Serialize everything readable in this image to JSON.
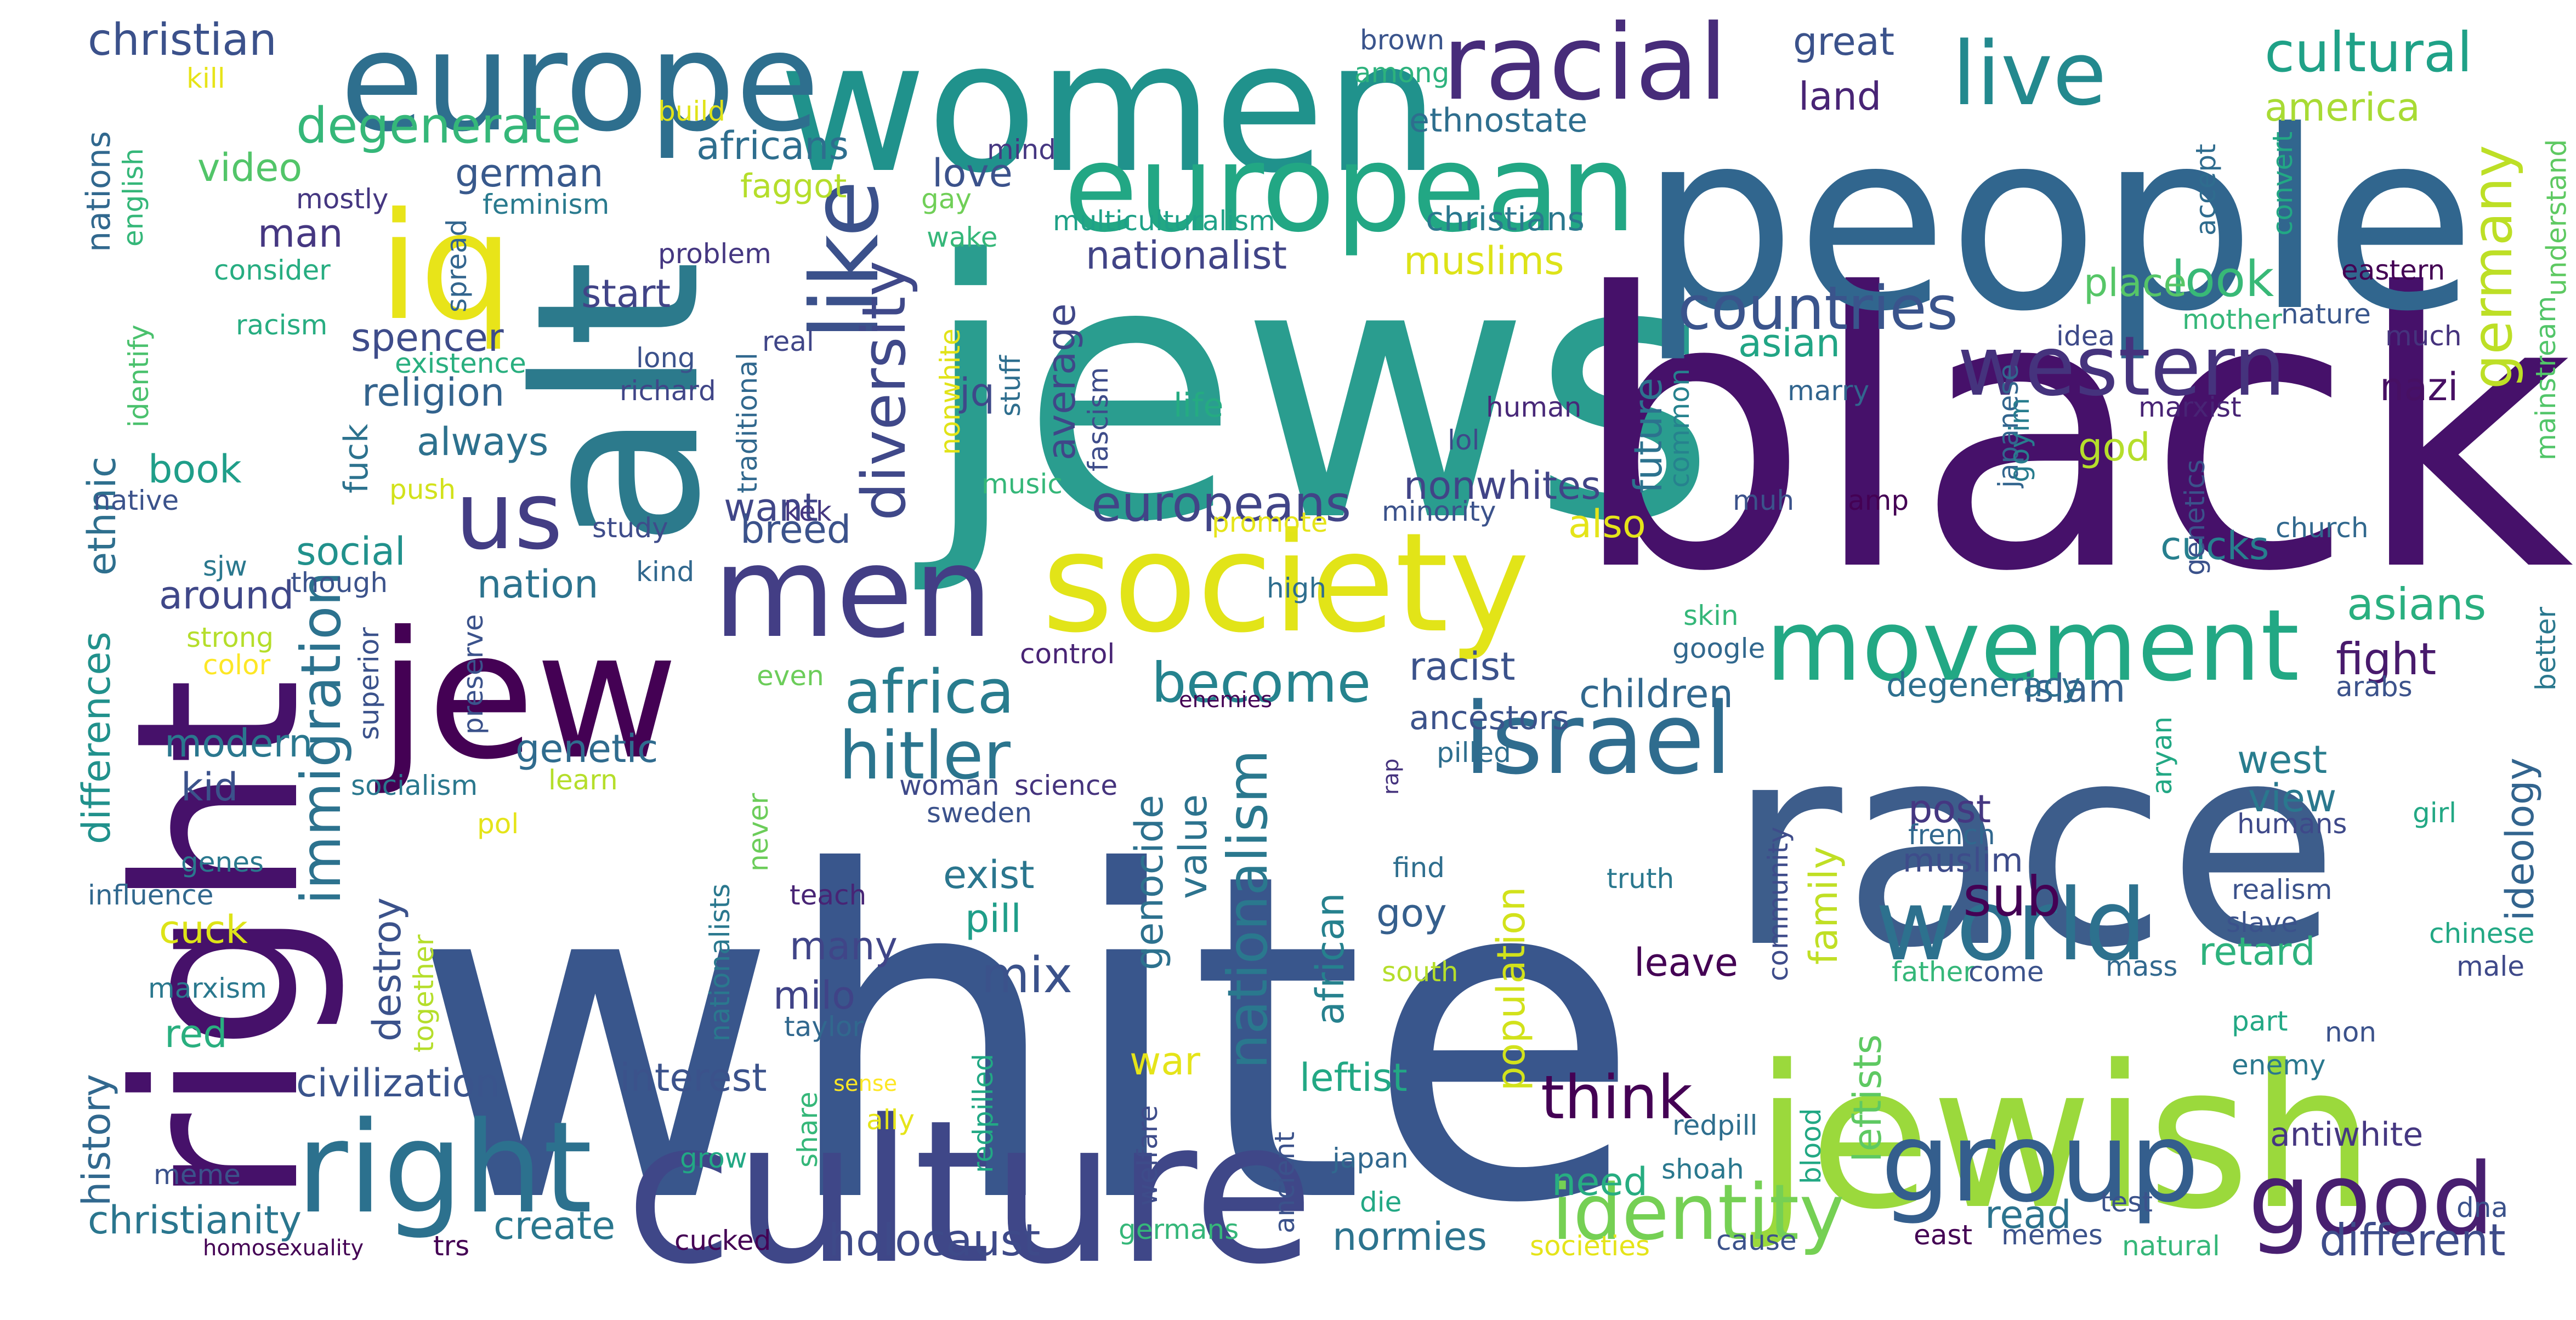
{
  "word_cloud": {
    "words": [
      {
        "text": "white",
        "color": "#39568c"
      },
      {
        "text": "jews",
        "color": "#2a9d8f"
      },
      {
        "text": "black",
        "color": "#46116a"
      },
      {
        "text": "race",
        "color": "#3d5d8b"
      },
      {
        "text": "people",
        "color": "#31668e"
      },
      {
        "text": "alt",
        "color": "#2c7a8c"
      },
      {
        "text": "right",
        "color": "#46116a"
      },
      {
        "text": "jewish",
        "color": "#9bd93c"
      },
      {
        "text": "culture",
        "color": "#3f4788"
      },
      {
        "text": "women",
        "color": "#20928c"
      },
      {
        "text": "europe",
        "color": "#2e6f8e"
      },
      {
        "text": "society",
        "color": "#e2e418"
      },
      {
        "text": "jew",
        "color": "#440154"
      },
      {
        "text": "iq",
        "color": "#e8e419"
      },
      {
        "text": "european",
        "color": "#22a784"
      },
      {
        "text": "men",
        "color": "#433e85"
      },
      {
        "text": "right",
        "color": "#2c718e"
      },
      {
        "text": "racial",
        "color": "#472c7a"
      },
      {
        "text": "group",
        "color": "#345e8d"
      },
      {
        "text": "movement",
        "color": "#22a884"
      },
      {
        "text": "israel",
        "color": "#2f6c8e"
      },
      {
        "text": "world",
        "color": "#2d718e"
      },
      {
        "text": "like",
        "color": "#3b518b"
      },
      {
        "text": "us",
        "color": "#433d84"
      },
      {
        "text": "good",
        "color": "#481f70"
      },
      {
        "text": "live",
        "color": "#23898e"
      },
      {
        "text": "western",
        "color": "#45337d"
      },
      {
        "text": "identity",
        "color": "#75d054"
      },
      {
        "text": "countries",
        "color": "#3a548c"
      },
      {
        "text": "diversity",
        "color": "#3f4889"
      },
      {
        "text": "hitler",
        "color": "#2b758e"
      },
      {
        "text": "africa",
        "color": "#287c8e"
      },
      {
        "text": "immigration",
        "color": "#2c728e"
      },
      {
        "text": "cultural",
        "color": "#1fa187"
      },
      {
        "text": "degenerate",
        "color": "#35b779"
      },
      {
        "text": "nationalism",
        "color": "#2a788e"
      },
      {
        "text": "europeans",
        "color": "#414487"
      },
      {
        "text": "become",
        "color": "#25838e"
      },
      {
        "text": "think",
        "color": "#440154"
      },
      {
        "text": "holocaust",
        "color": "#3e4a89"
      },
      {
        "text": "germany",
        "color": "#bddf26"
      },
      {
        "text": "christian",
        "color": "#3b518b"
      },
      {
        "text": "christianity",
        "color": "#2a768e"
      },
      {
        "text": "civilization",
        "color": "#3a548c"
      },
      {
        "text": "nationalist",
        "color": "#414487"
      },
      {
        "text": "nonwhites",
        "color": "#414487"
      },
      {
        "text": "look",
        "color": "#38b977"
      },
      {
        "text": "sub",
        "color": "#440154"
      },
      {
        "text": "mix",
        "color": "#3b528b"
      },
      {
        "text": "different",
        "color": "#3e4c8a"
      },
      {
        "text": "america",
        "color": "#a8db34"
      },
      {
        "text": "africans",
        "color": "#2e6e8e"
      },
      {
        "text": "genetic",
        "color": "#2f6b8e"
      },
      {
        "text": "fight",
        "color": "#481a6c"
      },
      {
        "text": "nazi",
        "color": "#471063"
      },
      {
        "text": "islam",
        "color": "#35608d"
      },
      {
        "text": "asians",
        "color": "#29af7f"
      },
      {
        "text": "muslims",
        "color": "#dde318"
      },
      {
        "text": "modern",
        "color": "#2a778e"
      },
      {
        "text": "around",
        "color": "#3f4788"
      },
      {
        "text": "religion",
        "color": "#33638d"
      },
      {
        "text": "always",
        "color": "#2d718e"
      },
      {
        "text": "video",
        "color": "#52c569"
      },
      {
        "text": "german",
        "color": "#38598c"
      },
      {
        "text": "leftist",
        "color": "#22a884"
      },
      {
        "text": "need",
        "color": "#27ad81"
      },
      {
        "text": "racist",
        "color": "#3b528b"
      },
      {
        "text": "genocide",
        "color": "#2d718e"
      },
      {
        "text": "population",
        "color": "#d2e21b"
      },
      {
        "text": "leftists",
        "color": "#5ec962"
      },
      {
        "text": "ideology",
        "color": "#32648e"
      },
      {
        "text": "retard",
        "color": "#2db27d"
      },
      {
        "text": "cucks",
        "color": "#277f8e"
      },
      {
        "text": "west",
        "color": "#287d8e"
      },
      {
        "text": "view",
        "color": "#2a788e"
      },
      {
        "text": "post",
        "color": "#453781"
      },
      {
        "text": "children",
        "color": "#31688e"
      },
      {
        "text": "nation",
        "color": "#2c738e"
      },
      {
        "text": "social",
        "color": "#21918c"
      },
      {
        "text": "book",
        "color": "#1f9e89"
      },
      {
        "text": "ethnic",
        "color": "#2e6f8e"
      },
      {
        "text": "differences",
        "color": "#21918c"
      },
      {
        "text": "kid",
        "color": "#3b528b"
      },
      {
        "text": "spencer",
        "color": "#3e4c8a"
      },
      {
        "text": "start",
        "color": "#414487"
      },
      {
        "text": "want",
        "color": "#404688"
      },
      {
        "text": "breed",
        "color": "#3b528b"
      },
      {
        "text": "jq",
        "color": "#3e4989"
      },
      {
        "text": "average",
        "color": "#3f4788"
      },
      {
        "text": "future",
        "color": "#2c728e"
      },
      {
        "text": "god",
        "color": "#b5de2b"
      },
      {
        "text": "also",
        "color": "#e5e419"
      },
      {
        "text": "asian",
        "color": "#21a585"
      },
      {
        "text": "place",
        "color": "#56c667"
      },
      {
        "text": "man",
        "color": "#453781"
      },
      {
        "text": "love",
        "color": "#3b528b"
      },
      {
        "text": "great",
        "color": "#3b528b"
      },
      {
        "text": "land",
        "color": "#482475"
      },
      {
        "text": "value",
        "color": "#2c738e"
      },
      {
        "text": "exist",
        "color": "#2a768e"
      },
      {
        "text": "pill",
        "color": "#1f9e89"
      },
      {
        "text": "many",
        "color": "#404588"
      },
      {
        "text": "milo",
        "color": "#404387"
      },
      {
        "text": "interest",
        "color": "#3b528b"
      },
      {
        "text": "create",
        "color": "#2a778e"
      },
      {
        "text": "history",
        "color": "#31688e"
      },
      {
        "text": "destroy",
        "color": "#3b528b"
      },
      {
        "text": "cuck",
        "color": "#dde318"
      },
      {
        "text": "red",
        "color": "#29af7f"
      },
      {
        "text": "goy",
        "color": "#355f8d"
      },
      {
        "text": "african",
        "color": "#26818e"
      },
      {
        "text": "war",
        "color": "#e5e419"
      },
      {
        "text": "read",
        "color": "#2c738e"
      },
      {
        "text": "normies",
        "color": "#2c738e"
      },
      {
        "text": "family",
        "color": "#c0df25"
      },
      {
        "text": "leave",
        "color": "#440154"
      },
      {
        "text": "muslim",
        "color": "#3e4c8a"
      },
      {
        "text": "degeneracy",
        "color": "#2d6f8e"
      },
      {
        "text": "ancestors",
        "color": "#3b528b"
      },
      {
        "text": "antiwhite",
        "color": "#453781"
      },
      {
        "text": "fuck",
        "color": "#2c728e"
      },
      {
        "text": "ethnostate",
        "color": "#2e6e8e"
      },
      {
        "text": "christians",
        "color": "#2a788e"
      },
      {
        "text": "nations",
        "color": "#31688e"
      },
      {
        "text": "life",
        "color": "#25ab82"
      },
      {
        "text": "faggot",
        "color": "#b5de2b"
      },
      {
        "text": "build",
        "color": "#e0e318"
      },
      {
        "text": "kill",
        "color": "#e7e419"
      },
      {
        "text": "mostly",
        "color": "#453781"
      },
      {
        "text": "spread",
        "color": "#32658e"
      },
      {
        "text": "feminism",
        "color": "#297a8e"
      },
      {
        "text": "problem",
        "color": "#453781"
      },
      {
        "text": "consider",
        "color": "#27ad81"
      },
      {
        "text": "english",
        "color": "#35b779"
      },
      {
        "text": "multiculturalism",
        "color": "#1fa187"
      },
      {
        "text": "wake",
        "color": "#35b779"
      },
      {
        "text": "gay",
        "color": "#70cf57"
      },
      {
        "text": "nonwhite",
        "color": "#e1e318"
      },
      {
        "text": "among",
        "color": "#2db27d"
      },
      {
        "text": "brown",
        "color": "#3a548c"
      },
      {
        "text": "mind",
        "color": "#453781"
      },
      {
        "text": "accept",
        "color": "#2f6c8e"
      },
      {
        "text": "convert",
        "color": "#22a884"
      },
      {
        "text": "understand",
        "color": "#5ec962"
      },
      {
        "text": "eastern",
        "color": "#440154"
      },
      {
        "text": "mother",
        "color": "#35b779"
      },
      {
        "text": "nature",
        "color": "#39568c"
      },
      {
        "text": "idea",
        "color": "#3e4a89"
      },
      {
        "text": "much",
        "color": "#45337d"
      },
      {
        "text": "mainstream",
        "color": "#52c569"
      },
      {
        "text": "marxist",
        "color": "#482475"
      },
      {
        "text": "genetics",
        "color": "#3b528b"
      },
      {
        "text": "church",
        "color": "#31688e"
      },
      {
        "text": "racism",
        "color": "#27ad81"
      },
      {
        "text": "existence",
        "color": "#29af7f"
      },
      {
        "text": "identify",
        "color": "#4ac16d"
      },
      {
        "text": "long",
        "color": "#3b528b"
      },
      {
        "text": "real",
        "color": "#404688"
      },
      {
        "text": "richard",
        "color": "#404688"
      },
      {
        "text": "traditional",
        "color": "#31688e"
      },
      {
        "text": "stuff",
        "color": "#2e6e8e"
      },
      {
        "text": "fascism",
        "color": "#3e4c8a"
      },
      {
        "text": "human",
        "color": "#482878"
      },
      {
        "text": "lol",
        "color": "#3e4989"
      },
      {
        "text": "common",
        "color": "#26828e"
      },
      {
        "text": "japanese",
        "color": "#32658e"
      },
      {
        "text": "goyim",
        "color": "#287d8e"
      },
      {
        "text": "marry",
        "color": "#32658e"
      },
      {
        "text": "muh",
        "color": "#3b528b"
      },
      {
        "text": "amp",
        "color": "#440154"
      },
      {
        "text": "kek",
        "color": "#453781"
      },
      {
        "text": "music",
        "color": "#35b779"
      },
      {
        "text": "native",
        "color": "#3b528b"
      },
      {
        "text": "push",
        "color": "#d2e21b"
      },
      {
        "text": "study",
        "color": "#3e4c8a"
      },
      {
        "text": "promote",
        "color": "#e5e419"
      },
      {
        "text": "minority",
        "color": "#3b528b"
      },
      {
        "text": "sjw",
        "color": "#2a788e"
      },
      {
        "text": "though",
        "color": "#3b528b"
      },
      {
        "text": "kind",
        "color": "#31688e"
      },
      {
        "text": "strong",
        "color": "#b5de2b"
      },
      {
        "text": "color",
        "color": "#fde725"
      },
      {
        "text": "superior",
        "color": "#3b528b"
      },
      {
        "text": "preserve",
        "color": "#3b528b"
      },
      {
        "text": "high",
        "color": "#2e6e8e"
      },
      {
        "text": "skin",
        "color": "#35b779"
      },
      {
        "text": "google",
        "color": "#31688e"
      },
      {
        "text": "enemies",
        "color": "#440154"
      },
      {
        "text": "control",
        "color": "#482475"
      },
      {
        "text": "even",
        "color": "#6ccd5a"
      },
      {
        "text": "learn",
        "color": "#b5de2b"
      },
      {
        "text": "socialism",
        "color": "#2a788e"
      },
      {
        "text": "pol",
        "color": "#e5e419"
      },
      {
        "text": "woman",
        "color": "#3e4989"
      },
      {
        "text": "science",
        "color": "#45337d"
      },
      {
        "text": "sweden",
        "color": "#3b528b"
      },
      {
        "text": "pilled",
        "color": "#2e6e8e"
      },
      {
        "text": "rap",
        "color": "#45337d"
      },
      {
        "text": "genes",
        "color": "#2a788e"
      },
      {
        "text": "influence",
        "color": "#31688e"
      },
      {
        "text": "together",
        "color": "#b5de2b"
      },
      {
        "text": "marxism",
        "color": "#2a788e"
      },
      {
        "text": "never",
        "color": "#6ccd5a"
      },
      {
        "text": "nationalists",
        "color": "#2a788e"
      },
      {
        "text": "teach",
        "color": "#482475"
      },
      {
        "text": "taylor",
        "color": "#31688e"
      },
      {
        "text": "sense",
        "color": "#fde725"
      },
      {
        "text": "ally",
        "color": "#e5e419"
      },
      {
        "text": "share",
        "color": "#35b779"
      },
      {
        "text": "meme",
        "color": "#3b528b"
      },
      {
        "text": "grow",
        "color": "#22a884"
      },
      {
        "text": "redpilled",
        "color": "#22a884"
      },
      {
        "text": "welfare",
        "color": "#3e4c8a"
      },
      {
        "text": "ancient",
        "color": "#3b528b"
      },
      {
        "text": "find",
        "color": "#2e6e8e"
      },
      {
        "text": "south",
        "color": "#b5de2b"
      },
      {
        "text": "japan",
        "color": "#31688e"
      },
      {
        "text": "die",
        "color": "#22a884"
      },
      {
        "text": "germans",
        "color": "#35b779"
      },
      {
        "text": "trs",
        "color": "#440154"
      },
      {
        "text": "homosexuality",
        "color": "#440154"
      },
      {
        "text": "cucked",
        "color": "#440154"
      },
      {
        "text": "truth",
        "color": "#2a788e"
      },
      {
        "text": "community",
        "color": "#3e4c8a"
      },
      {
        "text": "redpill",
        "color": "#2e6e8e"
      },
      {
        "text": "blood",
        "color": "#22a884"
      },
      {
        "text": "shoah",
        "color": "#2a788e"
      },
      {
        "text": "societies",
        "color": "#e5e419"
      },
      {
        "text": "cause",
        "color": "#3b528b"
      },
      {
        "text": "east",
        "color": "#440154"
      },
      {
        "text": "memes",
        "color": "#3b528b"
      },
      {
        "text": "natural",
        "color": "#35b779"
      },
      {
        "text": "test",
        "color": "#3b528b"
      },
      {
        "text": "dna",
        "color": "#3b528b"
      },
      {
        "text": "aryan",
        "color": "#22a884"
      },
      {
        "text": "humans",
        "color": "#3e4989"
      },
      {
        "text": "french",
        "color": "#31688e"
      },
      {
        "text": "father",
        "color": "#35b779"
      },
      {
        "text": "come",
        "color": "#3b528b"
      },
      {
        "text": "mass",
        "color": "#31688e"
      },
      {
        "text": "realism",
        "color": "#3b528b"
      },
      {
        "text": "slave",
        "color": "#3b528b"
      },
      {
        "text": "part",
        "color": "#22a884"
      },
      {
        "text": "non",
        "color": "#3b528b"
      },
      {
        "text": "enemy",
        "color": "#2a788e"
      },
      {
        "text": "girl",
        "color": "#22a884"
      },
      {
        "text": "chinese",
        "color": "#22a884"
      },
      {
        "text": "male",
        "color": "#3e4989"
      },
      {
        "text": "arabs",
        "color": "#3b528b"
      },
      {
        "text": "better",
        "color": "#2a788e"
      }
    ]
  }
}
